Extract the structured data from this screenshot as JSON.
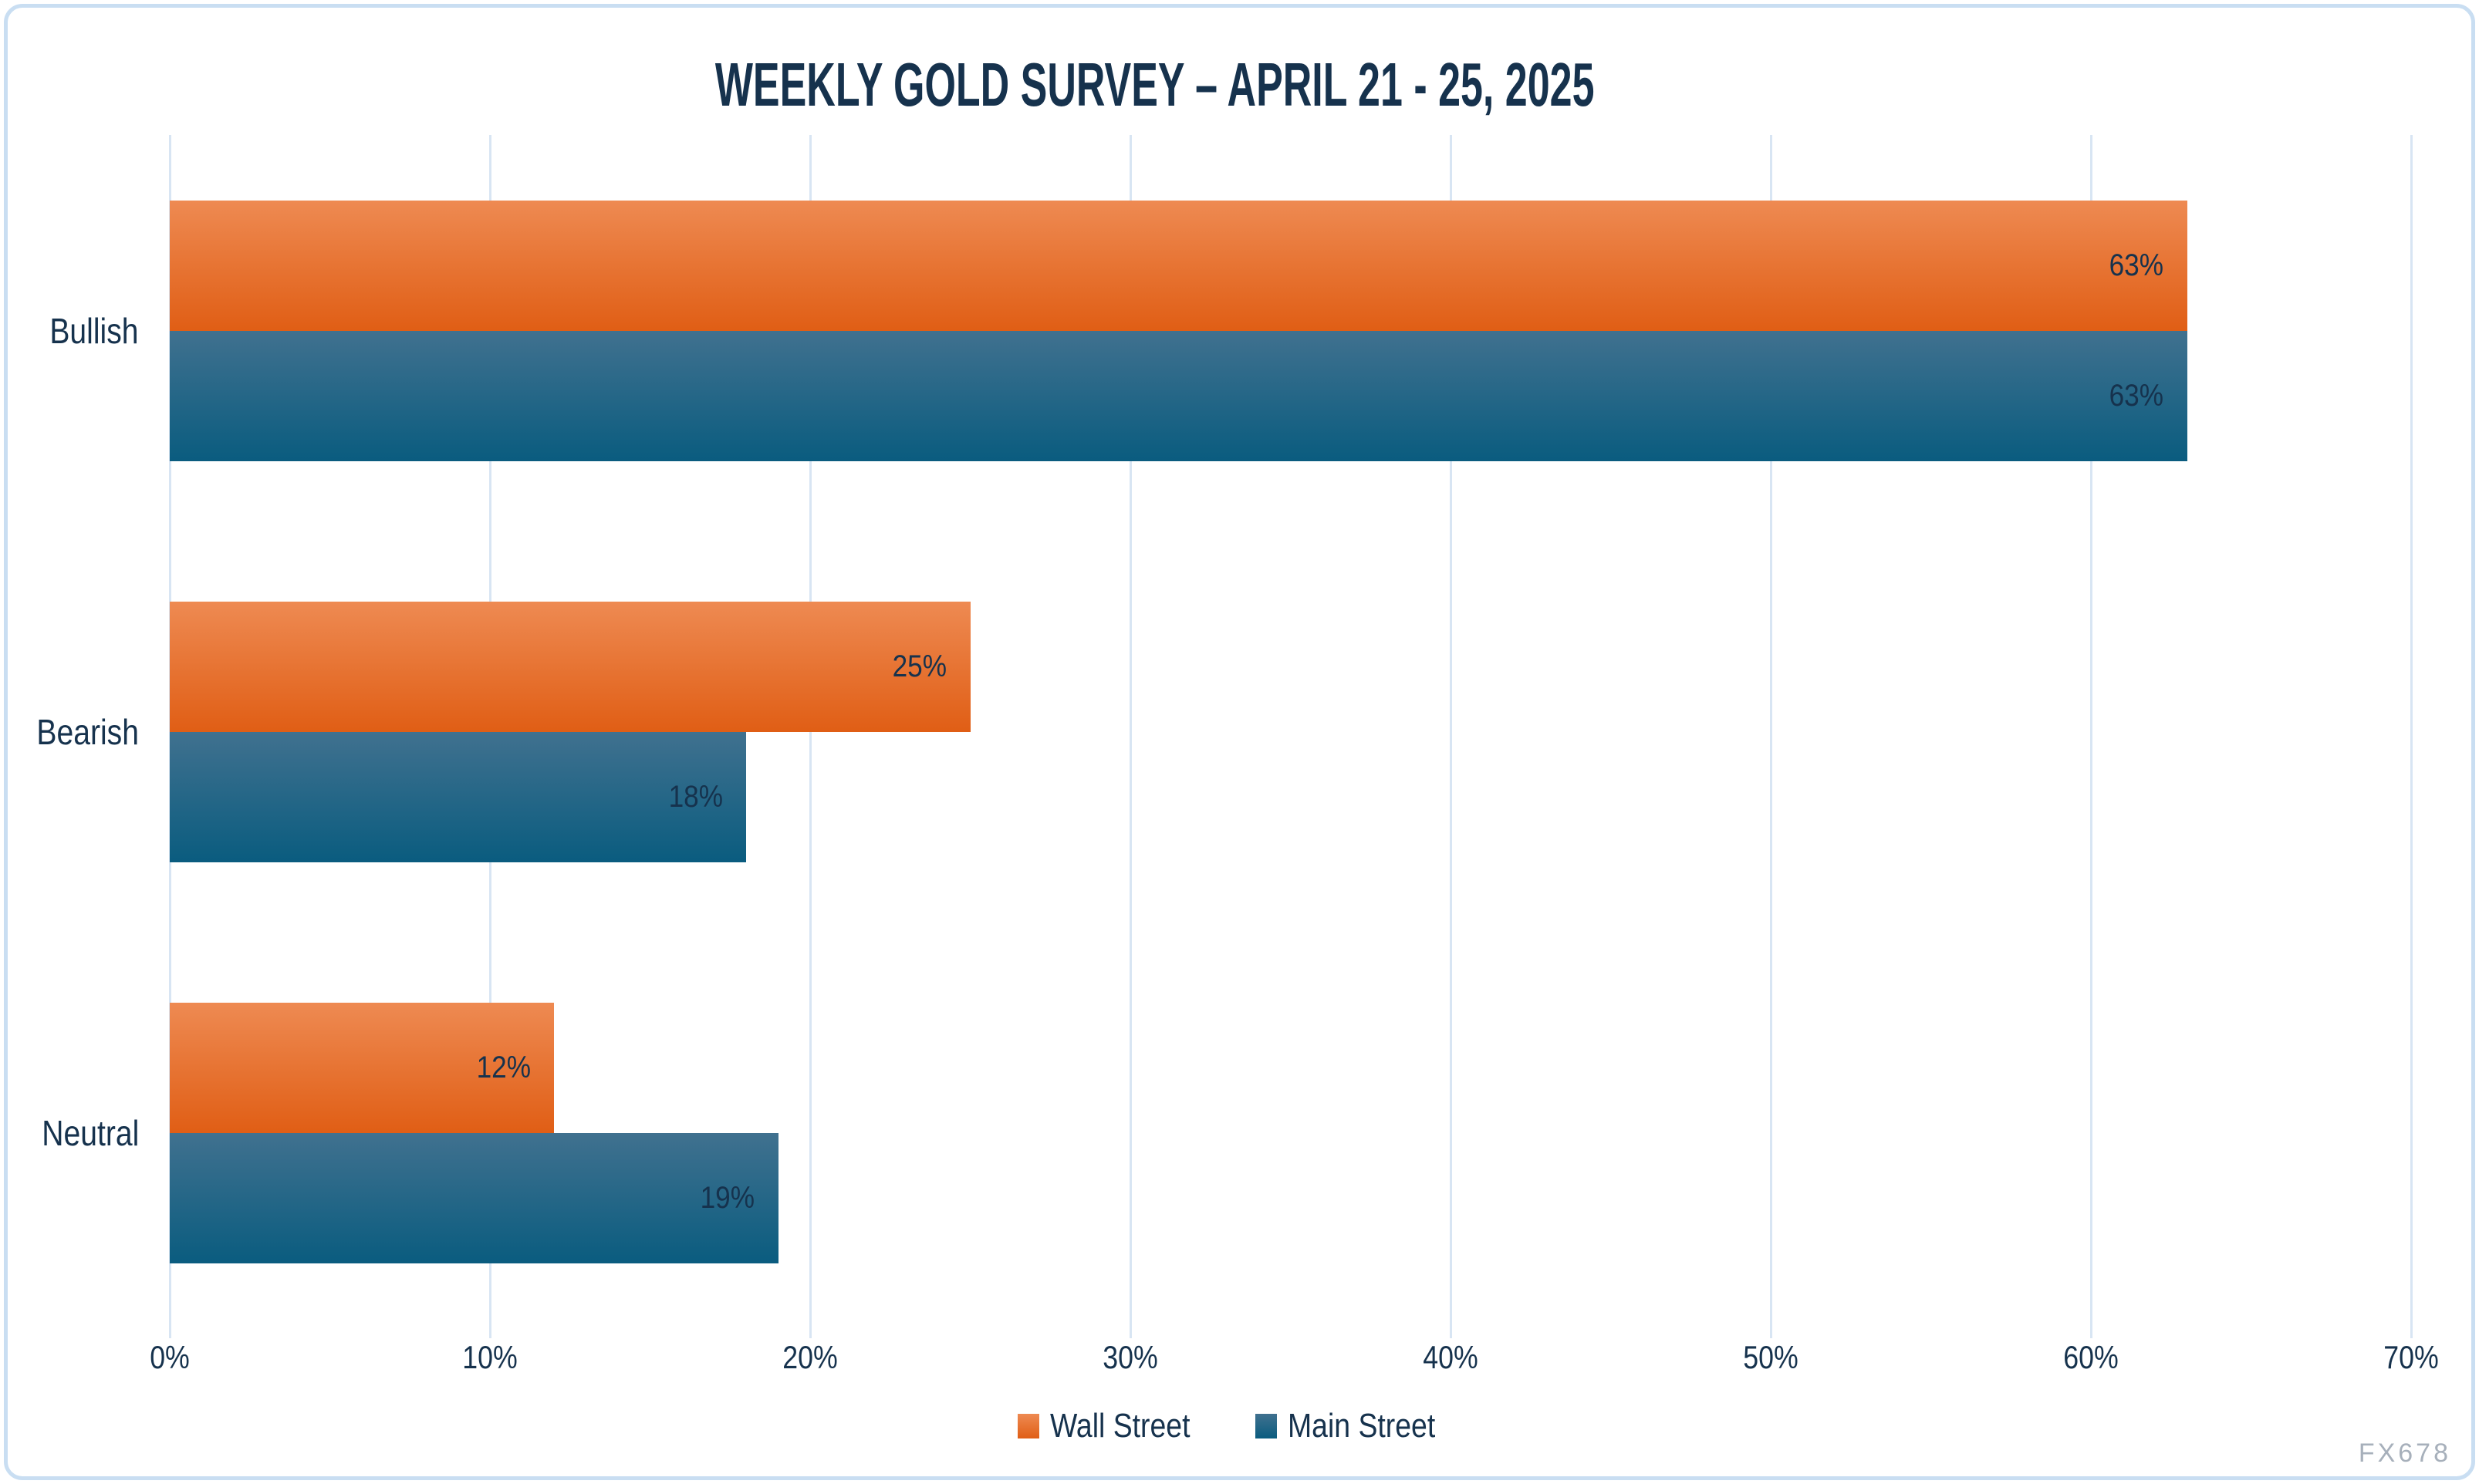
{
  "title": "WEEKLY GOLD SURVEY – APRIL 21 - 25, 2025",
  "watermark": "FX678",
  "chart_data": {
    "type": "bar",
    "orientation": "horizontal",
    "title": "WEEKLY GOLD SURVEY – APRIL 21 - 25, 2025",
    "categories": [
      "Bullish",
      "Bearish",
      "Neutral"
    ],
    "series": [
      {
        "name": "Wall Street",
        "values": [
          63,
          25,
          12
        ],
        "color_top": "#EE8A52",
        "color_bottom": "#E05E15"
      },
      {
        "name": "Main Street",
        "values": [
          63,
          18,
          19
        ],
        "color_top": "#40718F",
        "color_bottom": "#0A5C7F"
      }
    ],
    "value_suffix": "%",
    "value_labels": [
      "63%",
      "25%",
      "12%",
      "63%",
      "18%",
      "19%"
    ],
    "bar_label_position": "inside-end",
    "x_ticks": [
      {
        "label": "0%",
        "value": 0
      },
      {
        "label": "10%",
        "value": 10
      },
      {
        "label": "20%",
        "value": 20
      },
      {
        "label": "30%",
        "value": 30
      },
      {
        "label": "40%",
        "value": 40
      },
      {
        "label": "50%",
        "value": 50
      },
      {
        "label": "60%",
        "value": 60
      },
      {
        "label": "70%",
        "value": 70
      }
    ],
    "xlim": [
      0,
      70
    ],
    "xlabel": "",
    "ylabel": "",
    "grid": true,
    "legend_position": "bottom"
  },
  "colors": {
    "text": "#16324D",
    "gridline": "#D8E5F3",
    "frame_border": "#C9DEF2",
    "watermark": "#A7B0BB",
    "background": "#FFFFFF"
  }
}
